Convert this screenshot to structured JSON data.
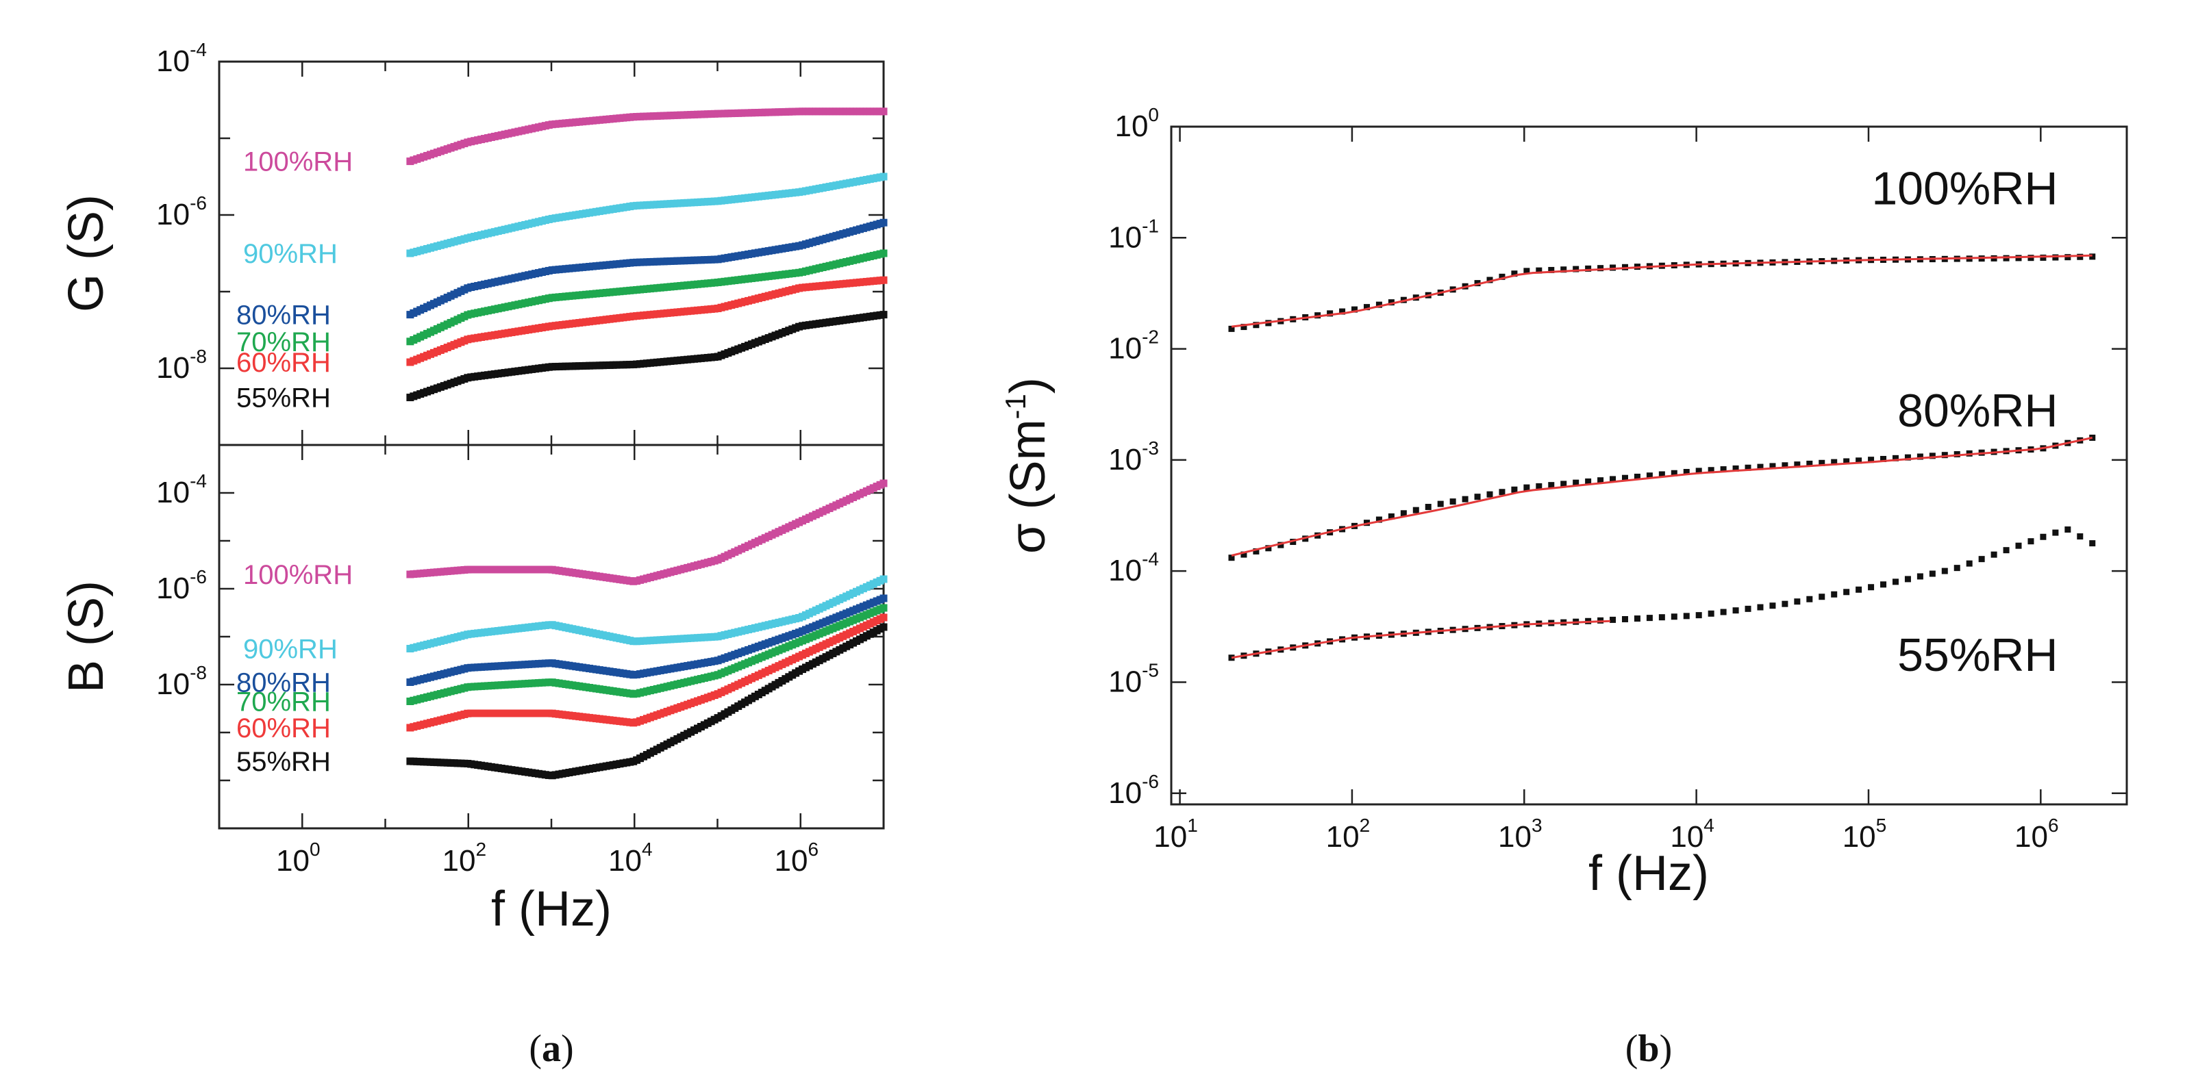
{
  "captions": {
    "a": {
      "open": "(",
      "letter": "a",
      "close": ")"
    },
    "b": {
      "open": "(",
      "letter": "b",
      "close": ")"
    }
  },
  "colors": {
    "100": "#cc4a9c",
    "90": "#4fc9e0",
    "80": "#1a4f9c",
    "70": "#1fa84f",
    "60": "#ef3a3a",
    "55": "#111111",
    "fit": "#e33a3a"
  },
  "chart_data": [
    {
      "panel": "a-top",
      "type": "scatter",
      "title": "",
      "xlabel": "f (Hz)",
      "ylabel": "G (S)",
      "x_scale": "log",
      "y_scale": "log",
      "xlim_exp": [
        -1,
        7
      ],
      "ylim_exp": [
        -9,
        -4
      ],
      "x_ticks": [
        {
          "base": "10",
          "exp": "0",
          "v": 0
        },
        {
          "base": "10",
          "exp": "2",
          "v": 2
        },
        {
          "base": "10",
          "exp": "4",
          "v": 4
        },
        {
          "base": "10",
          "exp": "6",
          "v": 6
        }
      ],
      "y_ticks": [
        {
          "base": "10",
          "exp": "-4",
          "v": -4
        },
        {
          "base": "10",
          "exp": "-6",
          "v": -6
        },
        {
          "base": "10",
          "exp": "-8",
          "v": -8
        }
      ],
      "series": [
        {
          "name": "100%RH",
          "key": "100",
          "x_log": [
            1.3,
            2,
            3,
            4,
            5,
            6,
            7
          ],
          "y_log": [
            -5.3,
            -5.05,
            -4.82,
            -4.72,
            -4.68,
            -4.65,
            -4.65
          ]
        },
        {
          "name": "90%RH",
          "key": "90",
          "x_log": [
            1.3,
            2,
            3,
            4,
            5,
            6,
            7
          ],
          "y_log": [
            -6.5,
            -6.3,
            -6.05,
            -5.88,
            -5.82,
            -5.7,
            -5.5
          ]
        },
        {
          "name": "80%RH",
          "key": "80",
          "x_log": [
            1.3,
            2,
            3,
            4,
            5,
            6,
            7
          ],
          "y_log": [
            -7.3,
            -6.95,
            -6.72,
            -6.62,
            -6.58,
            -6.4,
            -6.1
          ]
        },
        {
          "name": "70%RH",
          "key": "70",
          "x_log": [
            1.3,
            2,
            3,
            4,
            5,
            6,
            7
          ],
          "y_log": [
            -7.65,
            -7.3,
            -7.08,
            -6.98,
            -6.88,
            -6.75,
            -6.5
          ]
        },
        {
          "name": "60%RH",
          "key": "60",
          "x_log": [
            1.3,
            2,
            3,
            4,
            5,
            6,
            7
          ],
          "y_log": [
            -7.92,
            -7.62,
            -7.45,
            -7.32,
            -7.22,
            -6.95,
            -6.85
          ]
        },
        {
          "name": "55%RH",
          "key": "55",
          "x_log": [
            1.3,
            2,
            3,
            4,
            5,
            6,
            7
          ],
          "y_log": [
            -8.38,
            -8.12,
            -7.98,
            -7.95,
            -7.85,
            -7.45,
            -7.3
          ]
        }
      ]
    },
    {
      "panel": "a-bottom",
      "type": "scatter",
      "title": "",
      "xlabel": "f (Hz)",
      "ylabel": "B (S)",
      "x_scale": "log",
      "y_scale": "log",
      "xlim_exp": [
        -1,
        7
      ],
      "ylim_exp": [
        -11,
        -3
      ],
      "x_ticks": [
        {
          "base": "10",
          "exp": "0",
          "v": 0
        },
        {
          "base": "10",
          "exp": "2",
          "v": 2
        },
        {
          "base": "10",
          "exp": "4",
          "v": 4
        },
        {
          "base": "10",
          "exp": "6",
          "v": 6
        }
      ],
      "y_ticks": [
        {
          "base": "10",
          "exp": "-4",
          "v": -4
        },
        {
          "base": "10",
          "exp": "-6",
          "v": -6
        },
        {
          "base": "10",
          "exp": "-8",
          "v": -8
        }
      ],
      "series": [
        {
          "name": "100%RH",
          "key": "100",
          "x_log": [
            1.3,
            2,
            3,
            4,
            5,
            6,
            7
          ],
          "y_log": [
            -5.7,
            -5.6,
            -5.6,
            -5.85,
            -5.4,
            -4.6,
            -3.8
          ]
        },
        {
          "name": "90%RH",
          "key": "90",
          "x_log": [
            1.3,
            2,
            3,
            4,
            5,
            6,
            7
          ],
          "y_log": [
            -7.25,
            -6.95,
            -6.75,
            -7.1,
            -7.0,
            -6.6,
            -5.8
          ]
        },
        {
          "name": "80%RH",
          "key": "80",
          "x_log": [
            1.3,
            2,
            3,
            4,
            5,
            6,
            7
          ],
          "y_log": [
            -7.95,
            -7.65,
            -7.55,
            -7.8,
            -7.5,
            -6.9,
            -6.2
          ]
        },
        {
          "name": "70%RH",
          "key": "70",
          "x_log": [
            1.3,
            2,
            3,
            4,
            5,
            6,
            7
          ],
          "y_log": [
            -8.35,
            -8.05,
            -7.95,
            -8.2,
            -7.8,
            -7.1,
            -6.4
          ]
        },
        {
          "name": "60%RH",
          "key": "60",
          "x_log": [
            1.3,
            2,
            3,
            4,
            5,
            6,
            7
          ],
          "y_log": [
            -8.9,
            -8.6,
            -8.6,
            -8.8,
            -8.2,
            -7.4,
            -6.6
          ]
        },
        {
          "name": "55%RH",
          "key": "55",
          "x_log": [
            1.3,
            2,
            3,
            4,
            5,
            6,
            7
          ],
          "y_log": [
            -9.6,
            -9.65,
            -9.9,
            -9.6,
            -8.7,
            -7.7,
            -6.8
          ]
        }
      ]
    },
    {
      "panel": "b",
      "type": "scatter",
      "title": "",
      "xlabel": "f (Hz)",
      "ylabel": "σ (Sm⁻¹)",
      "ylabel_parts": {
        "sym": "σ",
        "unit_open": " (Sm",
        "unit_exp": "-1",
        "unit_close": ")"
      },
      "x_scale": "log",
      "y_scale": "log",
      "xlim_exp": [
        0.95,
        6.5
      ],
      "ylim_exp": [
        -6.1,
        0
      ],
      "x_ticks": [
        {
          "base": "10",
          "exp": "1",
          "v": 1
        },
        {
          "base": "10",
          "exp": "2",
          "v": 2
        },
        {
          "base": "10",
          "exp": "3",
          "v": 3
        },
        {
          "base": "10",
          "exp": "4",
          "v": 4
        },
        {
          "base": "10",
          "exp": "5",
          "v": 5
        },
        {
          "base": "10",
          "exp": "6",
          "v": 6
        }
      ],
      "y_ticks": [
        {
          "base": "10",
          "exp": "0",
          "v": 0
        },
        {
          "base": "10",
          "exp": "-1",
          "v": -1
        },
        {
          "base": "10",
          "exp": "-2",
          "v": -2
        },
        {
          "base": "10",
          "exp": "-3",
          "v": -3
        },
        {
          "base": "10",
          "exp": "-4",
          "v": -4
        },
        {
          "base": "10",
          "exp": "-5",
          "v": -5
        },
        {
          "base": "10",
          "exp": "-6",
          "v": -6
        }
      ],
      "series": [
        {
          "name": "100%RH",
          "label_at": [
            6.1,
            -0.7
          ],
          "x_log": [
            1.3,
            2,
            2.5,
            3,
            4,
            5,
            6,
            6.3
          ],
          "y_log": [
            -1.82,
            -1.65,
            -1.5,
            -1.3,
            -1.24,
            -1.2,
            -1.18,
            -1.17
          ]
        },
        {
          "name": "80%RH",
          "label_at": [
            6.1,
            -2.7
          ],
          "x_log": [
            1.3,
            2,
            2.5,
            3,
            4,
            5,
            6,
            6.3
          ],
          "y_log": [
            -3.88,
            -3.6,
            -3.4,
            -3.25,
            -3.1,
            -3.0,
            -2.9,
            -2.8
          ]
        },
        {
          "name": "55%RH",
          "label_at": [
            6.1,
            -4.9
          ],
          "x_log": [
            1.3,
            2,
            3,
            4,
            4.5,
            5,
            5.5,
            6,
            6.15,
            6.3
          ],
          "y_log": [
            -4.78,
            -4.6,
            -4.48,
            -4.4,
            -4.3,
            -4.15,
            -3.98,
            -3.7,
            -3.62,
            -3.75
          ]
        }
      ],
      "fits": [
        {
          "for": "100%RH",
          "x_log": [
            1.3,
            2,
            2.5,
            3,
            4,
            5,
            6,
            6.3
          ],
          "y_log": [
            -1.8,
            -1.67,
            -1.5,
            -1.32,
            -1.24,
            -1.2,
            -1.17,
            -1.16
          ]
        },
        {
          "for": "80%RH",
          "x_log": [
            1.3,
            2,
            2.5,
            3,
            4,
            5,
            6,
            6.3
          ],
          "y_log": [
            -3.86,
            -3.6,
            -3.45,
            -3.28,
            -3.12,
            -3.02,
            -2.9,
            -2.8
          ]
        },
        {
          "for": "55%RH",
          "x_log": [
            1.3,
            2,
            3,
            3.5
          ],
          "y_log": [
            -4.78,
            -4.6,
            -4.48,
            -4.45
          ]
        }
      ]
    }
  ]
}
